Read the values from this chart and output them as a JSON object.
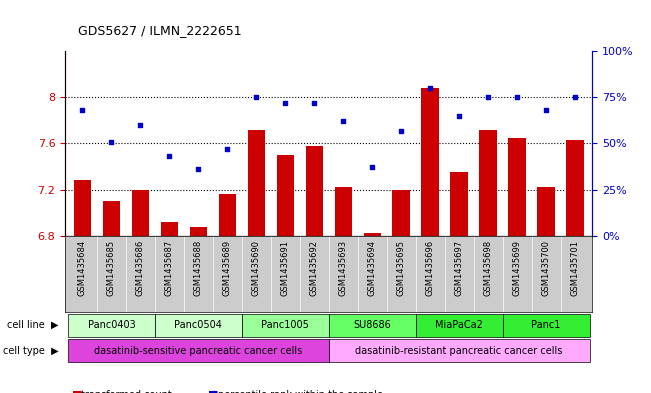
{
  "title": "GDS5627 / ILMN_2222651",
  "samples": [
    "GSM1435684",
    "GSM1435685",
    "GSM1435686",
    "GSM1435687",
    "GSM1435688",
    "GSM1435689",
    "GSM1435690",
    "GSM1435691",
    "GSM1435692",
    "GSM1435693",
    "GSM1435694",
    "GSM1435695",
    "GSM1435696",
    "GSM1435697",
    "GSM1435698",
    "GSM1435699",
    "GSM1435700",
    "GSM1435701"
  ],
  "transformed_count": [
    7.28,
    7.1,
    7.2,
    6.92,
    6.88,
    7.16,
    7.72,
    7.5,
    7.58,
    7.22,
    6.82,
    7.2,
    8.08,
    7.35,
    7.72,
    7.65,
    7.22,
    7.63
  ],
  "percentile_rank": [
    68,
    51,
    60,
    43,
    36,
    47,
    75,
    72,
    72,
    62,
    37,
    57,
    80,
    65,
    75,
    75,
    68,
    75
  ],
  "ylim_left": [
    6.8,
    8.4
  ],
  "ylim_right": [
    0,
    100
  ],
  "yticks_left": [
    6.8,
    7.2,
    7.6,
    8.0
  ],
  "ytick_labels_left": [
    "6.8",
    "7.2",
    "7.6",
    "8"
  ],
  "yticks_right": [
    0,
    25,
    50,
    75,
    100
  ],
  "ytick_labels_right": [
    "0%",
    "25%",
    "50%",
    "75%",
    "100%"
  ],
  "bar_color": "#cc0000",
  "dot_color": "#0000cc",
  "cell_lines": [
    {
      "label": "Panc0403",
      "start": 0,
      "end": 2,
      "color": "#ccffcc"
    },
    {
      "label": "Panc0504",
      "start": 3,
      "end": 5,
      "color": "#ccffcc"
    },
    {
      "label": "Panc1005",
      "start": 6,
      "end": 8,
      "color": "#99ff99"
    },
    {
      "label": "SU8686",
      "start": 9,
      "end": 11,
      "color": "#66ff66"
    },
    {
      "label": "MiaPaCa2",
      "start": 12,
      "end": 14,
      "color": "#33ee33"
    },
    {
      "label": "Panc1",
      "start": 15,
      "end": 17,
      "color": "#33ee33"
    }
  ],
  "cell_types": [
    {
      "label": "dasatinib-sensitive pancreatic cancer cells",
      "start": 0,
      "end": 8,
      "color": "#dd44dd"
    },
    {
      "label": "dasatinib-resistant pancreatic cancer cells",
      "start": 9,
      "end": 17,
      "color": "#ffaaff"
    }
  ],
  "sample_bg_color": "#cccccc",
  "grid_color": "black",
  "grid_style": "dotted"
}
